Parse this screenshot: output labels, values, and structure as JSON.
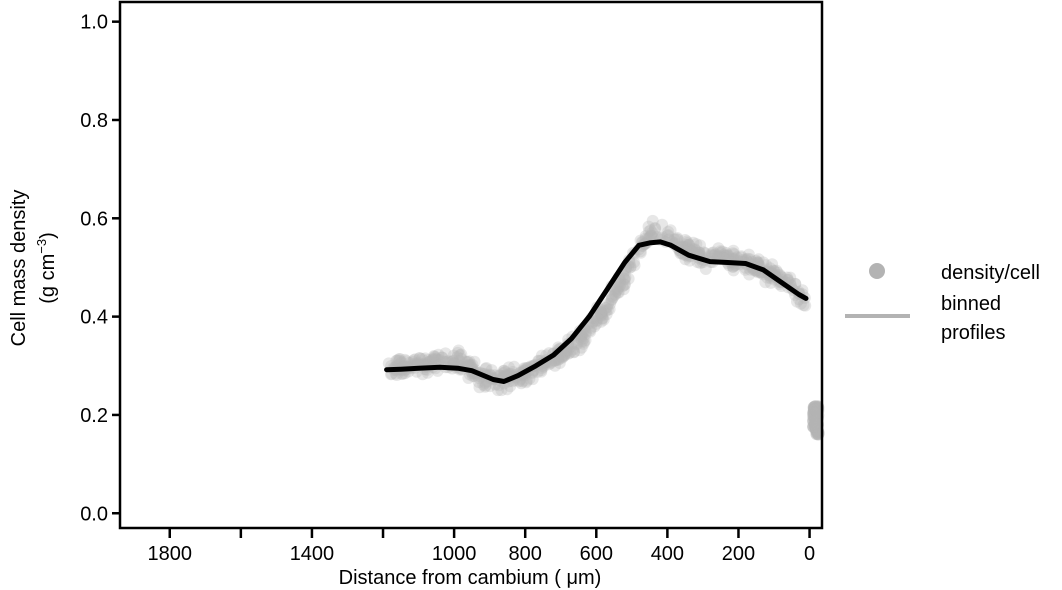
{
  "chart_data": {
    "type": "scatter",
    "xlabel": "Distance from cambium ( μm)",
    "ylabel_line1": "Cell mass density",
    "ylabel_line2_main": "(g cm",
    "ylabel_line2_sup": "−3",
    "ylabel_line2_close": ")",
    "x_reversed": true,
    "xlim": [
      1940,
      -35
    ],
    "ylim": [
      -0.03,
      1.04
    ],
    "x_ticks": [
      1800,
      1600,
      1400,
      1200,
      1000,
      800,
      600,
      400,
      200,
      0
    ],
    "x_tick_labels": [
      "1800",
      "",
      "1400",
      "",
      "1000",
      "800",
      "600",
      "400",
      "200",
      "0"
    ],
    "y_ticks": [
      0.0,
      0.2,
      0.4,
      0.6,
      0.8,
      1.0
    ],
    "y_tick_labels": [
      "0.0",
      "0.2",
      "0.4",
      "0.6",
      "0.8",
      "1.0"
    ],
    "grid": false,
    "legend_position": "right",
    "colors": {
      "points": "#b3b3b3",
      "profile": "#000000",
      "legend": "#b3b3b3"
    },
    "series": [
      {
        "name": "density/cell",
        "kind": "points",
        "ridge": [
          [
            1190,
            0.29
          ],
          [
            1120,
            0.3
          ],
          [
            1050,
            0.31
          ],
          [
            990,
            0.31
          ],
          [
            930,
            0.28
          ],
          [
            870,
            0.27
          ],
          [
            800,
            0.285
          ],
          [
            740,
            0.305
          ],
          [
            680,
            0.33
          ],
          [
            630,
            0.37
          ],
          [
            580,
            0.41
          ],
          [
            520,
            0.48
          ],
          [
            470,
            0.55
          ],
          [
            440,
            0.575
          ],
          [
            400,
            0.565
          ],
          [
            360,
            0.54
          ],
          [
            300,
            0.52
          ],
          [
            250,
            0.52
          ],
          [
            180,
            0.51
          ],
          [
            120,
            0.49
          ],
          [
            60,
            0.47
          ],
          [
            10,
            0.43
          ]
        ],
        "spread": 0.018,
        "cluster": {
          "x": [
            -10,
            -25
          ],
          "y": [
            0.16,
            0.22
          ]
        }
      },
      {
        "name": "binned profiles",
        "kind": "line",
        "x": [
          1190,
          1150,
          1100,
          1040,
          990,
          950,
          890,
          860,
          820,
          770,
          720,
          670,
          620,
          570,
          520,
          480,
          450,
          420,
          390,
          340,
          280,
          230,
          180,
          130,
          80,
          30,
          10
        ],
        "y": [
          0.292,
          0.293,
          0.295,
          0.297,
          0.295,
          0.29,
          0.272,
          0.268,
          0.28,
          0.3,
          0.322,
          0.355,
          0.4,
          0.455,
          0.51,
          0.545,
          0.55,
          0.552,
          0.545,
          0.525,
          0.512,
          0.51,
          0.508,
          0.495,
          0.47,
          0.445,
          0.437
        ]
      }
    ]
  },
  "legend": {
    "points_label": "density/cell",
    "line_label_1": "binned",
    "line_label_2": "profiles"
  }
}
